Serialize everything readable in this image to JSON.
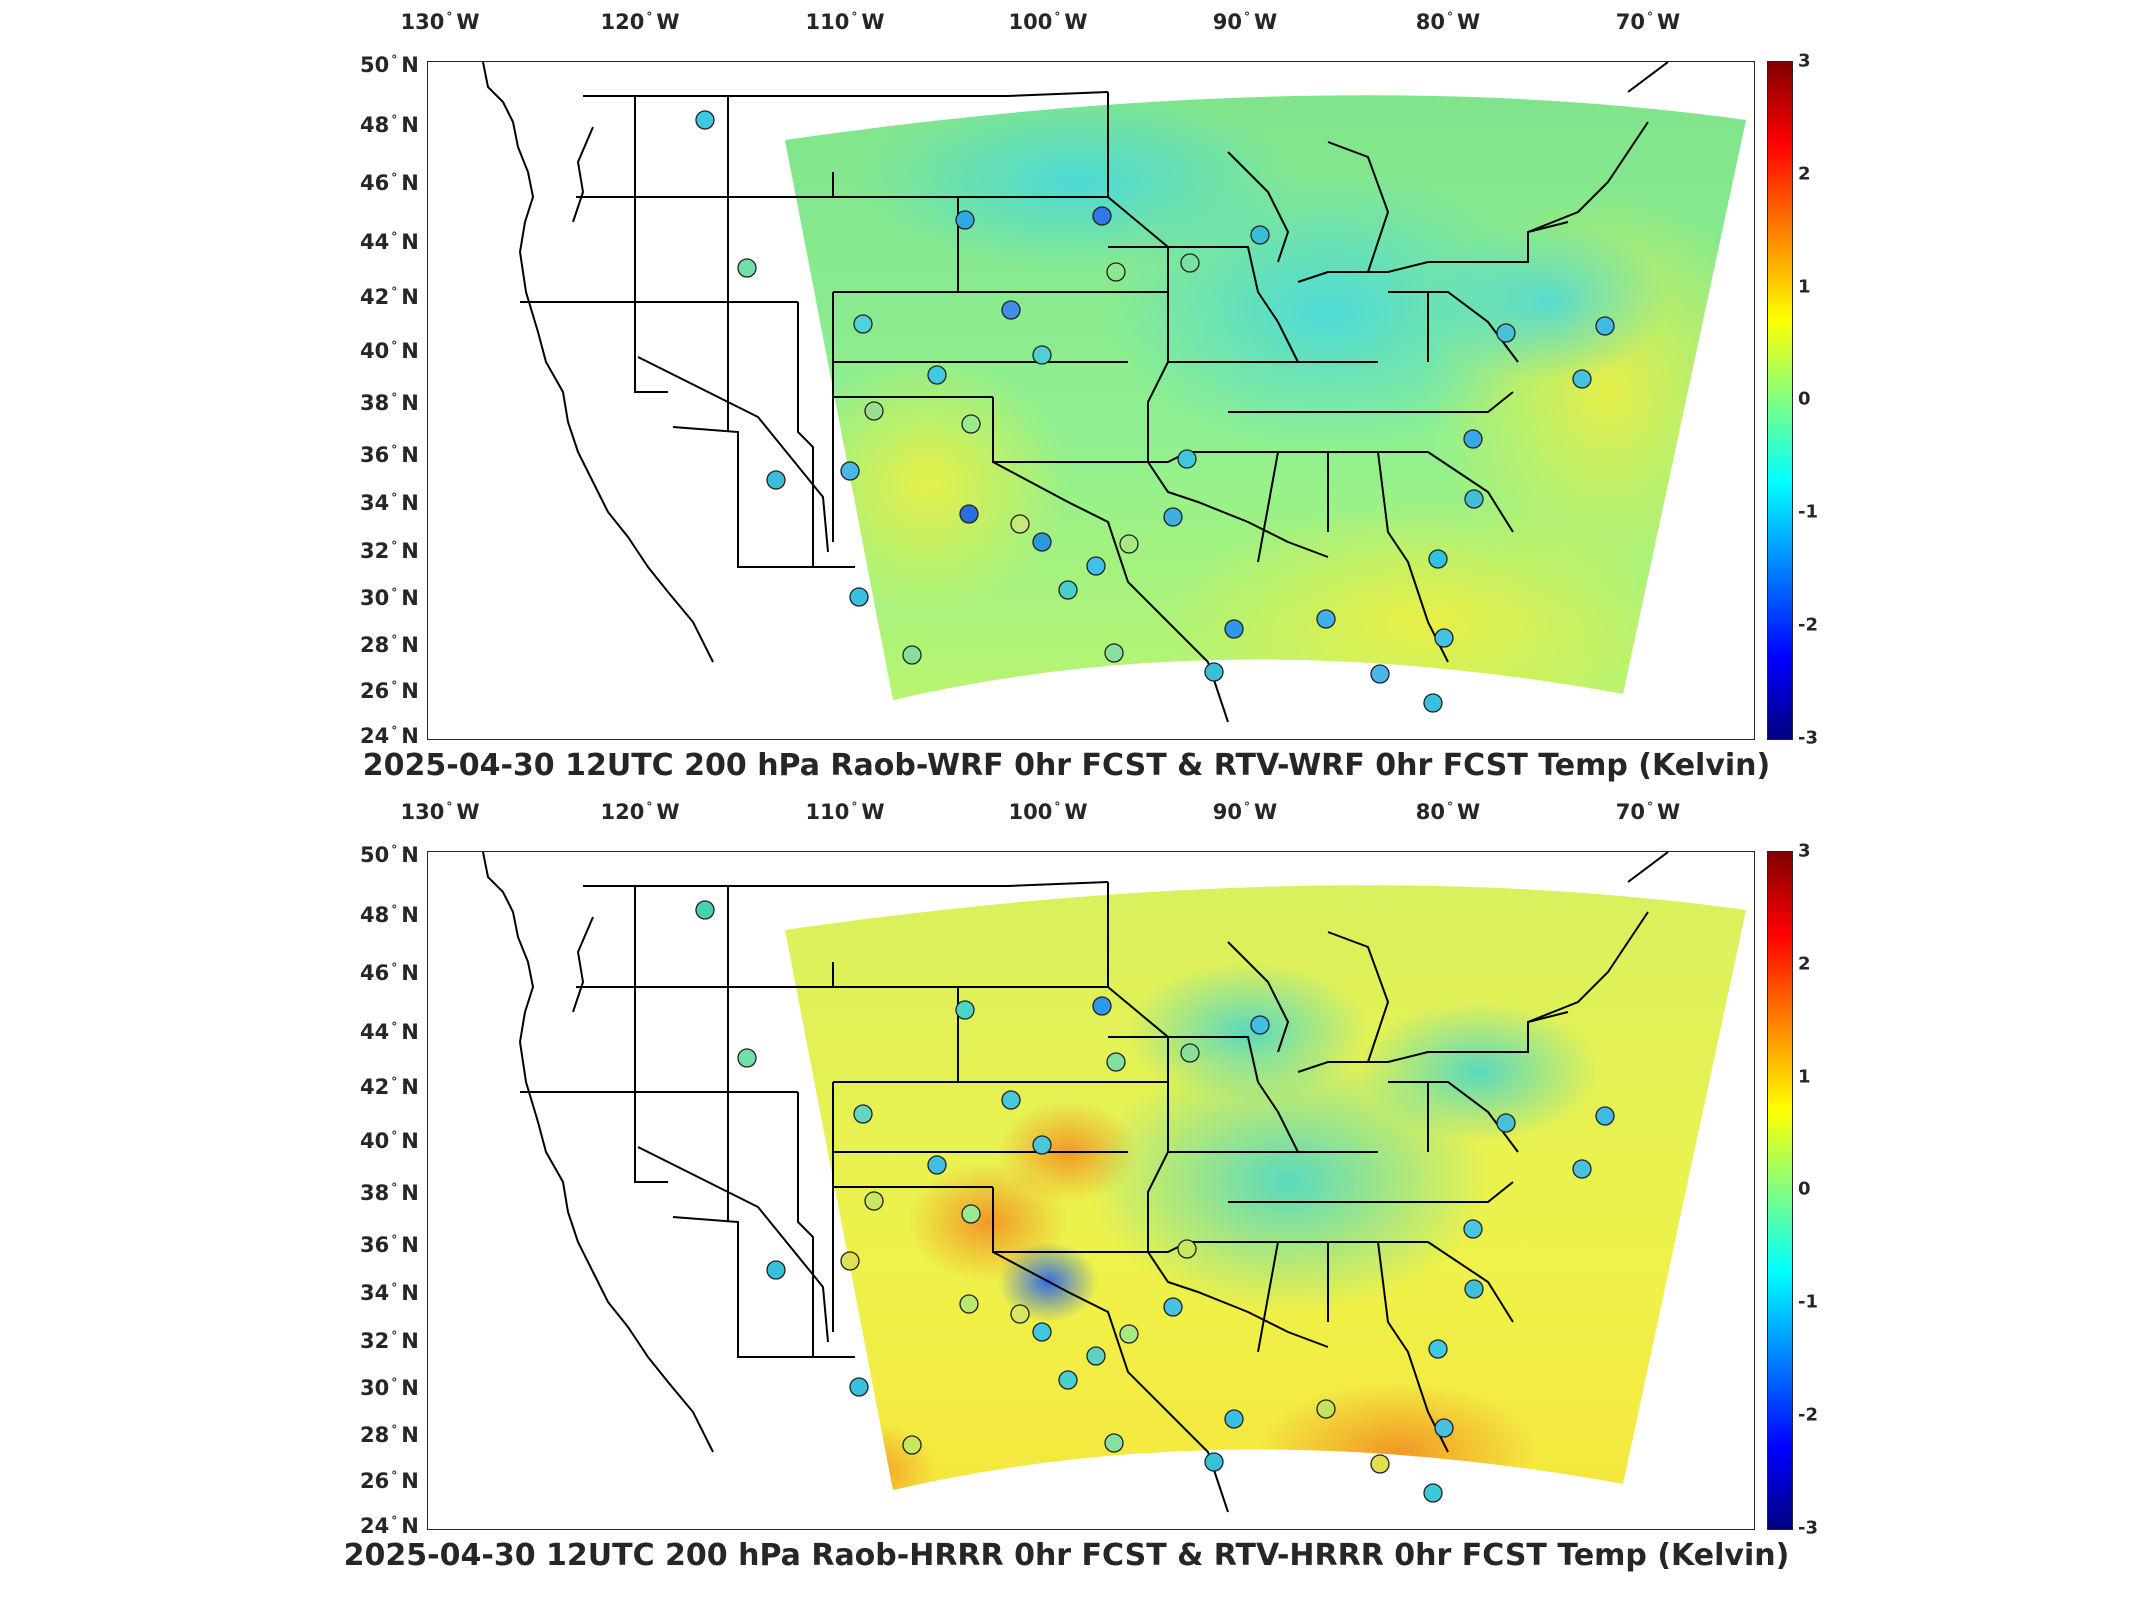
{
  "lon_labels": [
    {
      "deg": "130",
      "hemi": "W"
    },
    {
      "deg": "120",
      "hemi": "W"
    },
    {
      "deg": "110",
      "hemi": "W"
    },
    {
      "deg": "100",
      "hemi": "W"
    },
    {
      "deg": "90",
      "hemi": "W"
    },
    {
      "deg": "80",
      "hemi": "W"
    },
    {
      "deg": "70",
      "hemi": "W"
    }
  ],
  "lat_labels": [
    {
      "deg": "50",
      "hemi": "N"
    },
    {
      "deg": "48",
      "hemi": "N"
    },
    {
      "deg": "46",
      "hemi": "N"
    },
    {
      "deg": "44",
      "hemi": "N"
    },
    {
      "deg": "42",
      "hemi": "N"
    },
    {
      "deg": "40",
      "hemi": "N"
    },
    {
      "deg": "38",
      "hemi": "N"
    },
    {
      "deg": "36",
      "hemi": "N"
    },
    {
      "deg": "34",
      "hemi": "N"
    },
    {
      "deg": "32",
      "hemi": "N"
    },
    {
      "deg": "30",
      "hemi": "N"
    },
    {
      "deg": "28",
      "hemi": "N"
    },
    {
      "deg": "26",
      "hemi": "N"
    },
    {
      "deg": "24",
      "hemi": "N"
    }
  ],
  "colorbar_ticks": [
    "3",
    "2",
    "1",
    "0",
    "-1",
    "-2",
    "-3"
  ],
  "colormap": "jet",
  "panels": [
    {
      "title": "2025-04-30 12UTC 200 hPa Raob-WRF 0hr FCST & RTV-WRF 0hr FCST Temp (Kelvin)",
      "field_tint": "#8fe88f",
      "warm_tint": "#ffd84a"
    },
    {
      "title": "2025-04-30 12UTC 200 hPa Raob-HRRR 0hr FCST & RTV-HRRR 0hr FCST Temp (Kelvin)",
      "field_tint": "#e5f264",
      "warm_tint": "#ff8a1e"
    }
  ]
}
